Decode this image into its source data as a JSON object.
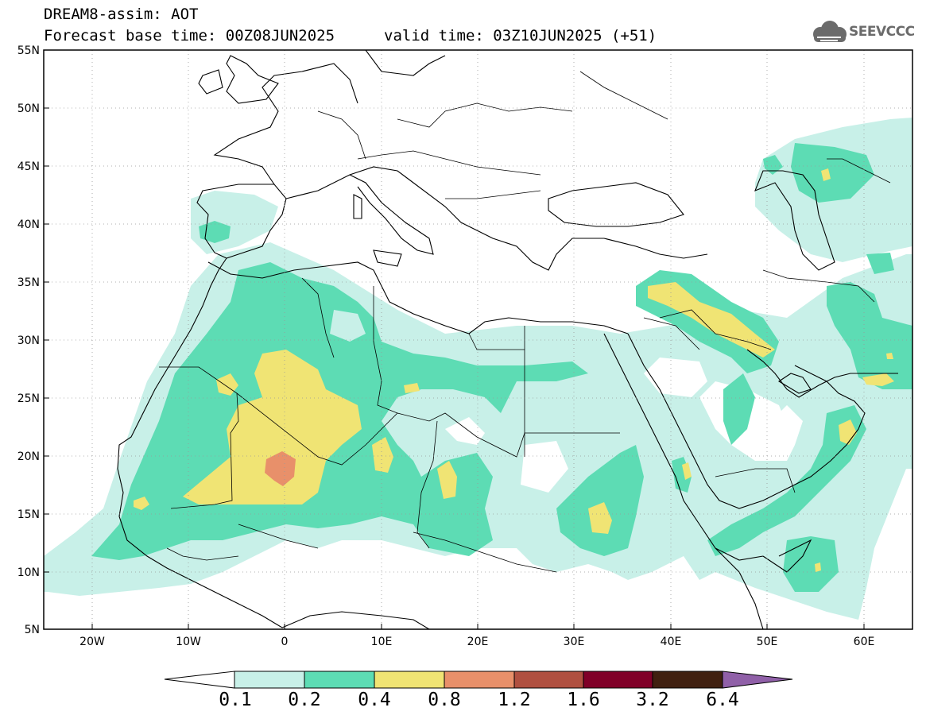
{
  "header": {
    "product_title": "DREAM8-assim: AOT",
    "base_time": "Forecast base time: 00Z08JUN2025",
    "valid_time": "valid time: 03Z10JUN2025 (+51)",
    "logo_text": "SEEVCCC"
  },
  "map": {
    "lat_labels": [
      "55N",
      "50N",
      "45N",
      "40N",
      "35N",
      "30N",
      "25N",
      "20N",
      "15N",
      "10N",
      "5N"
    ],
    "lon_labels": [
      "20W",
      "10W",
      "0",
      "10E",
      "20E",
      "30E",
      "40E",
      "50E",
      "60E"
    ],
    "extent": {
      "lon_min": -25,
      "lon_max": 65,
      "lat_min": 5,
      "lat_max": 55
    }
  },
  "colorbar": {
    "labels": [
      "0.1",
      "0.2",
      "0.4",
      "0.8",
      "1.2",
      "1.6",
      "3.2",
      "6.4"
    ],
    "colors": [
      "#c8f0e8",
      "#5ddcb4",
      "#f0e474",
      "#e8906a",
      "#b05040",
      "#800028",
      "#402010",
      "#9060a8"
    ]
  },
  "colors": {
    "lvl1": "#c8f0e8",
    "lvl2": "#5ddcb4",
    "lvl3": "#f0e474",
    "lvl4": "#e8906a"
  }
}
